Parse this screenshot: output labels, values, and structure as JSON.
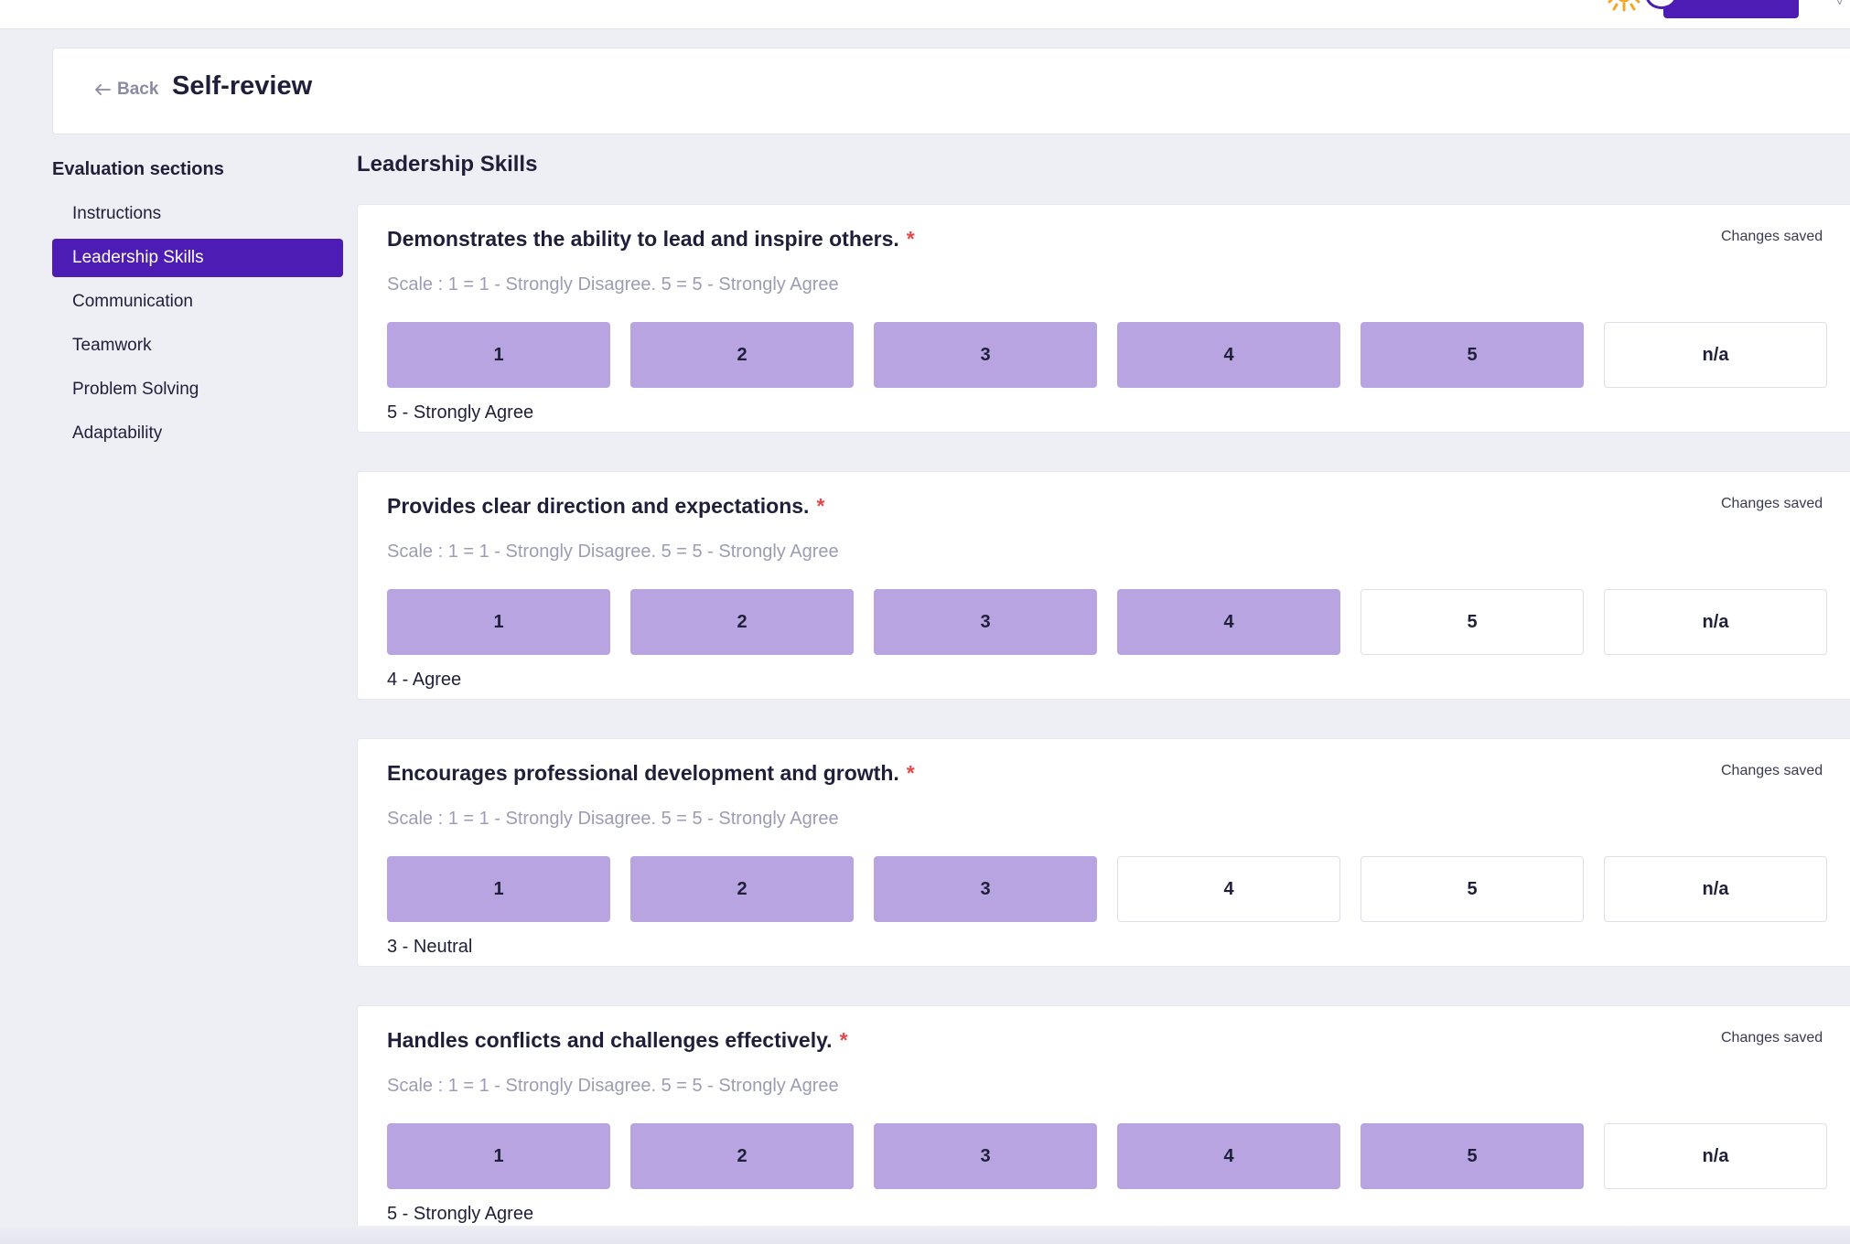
{
  "header": {
    "back_label": "Back",
    "page_title": "Self-review"
  },
  "sidebar": {
    "heading": "Evaluation sections",
    "items": [
      {
        "label": "Instructions",
        "active": false
      },
      {
        "label": "Leadership Skills",
        "active": true
      },
      {
        "label": "Communication",
        "active": false
      },
      {
        "label": "Teamwork",
        "active": false
      },
      {
        "label": "Problem Solving",
        "active": false
      },
      {
        "label": "Adaptability",
        "active": false
      }
    ]
  },
  "main": {
    "section_title": "Leadership Skills",
    "rating_options": [
      "1",
      "2",
      "3",
      "4",
      "5",
      "n/a"
    ],
    "questions": [
      {
        "title": "Demonstrates the ability to lead and inspire others.",
        "required_mark": "*",
        "status": "Changes saved",
        "scale": "Scale : 1 = 1 - Strongly Disagree. 5 = 5 - Strongly Agree",
        "selected_value": 5,
        "selected_label": "5 - Strongly Agree"
      },
      {
        "title": "Provides clear direction and expectations.",
        "required_mark": "*",
        "status": "Changes saved",
        "scale": "Scale : 1 = 1 - Strongly Disagree. 5 = 5 - Strongly Agree",
        "selected_value": 4,
        "selected_label": "4 - Agree"
      },
      {
        "title": "Encourages professional development and growth.",
        "required_mark": "*",
        "status": "Changes saved",
        "scale": "Scale : 1 = 1 - Strongly Disagree. 5 = 5 - Strongly Agree",
        "selected_value": 3,
        "selected_label": "3 - Neutral"
      },
      {
        "title": "Handles conflicts and challenges effectively.",
        "required_mark": "*",
        "status": "Changes saved",
        "scale": "Scale : 1 = 1 - Strongly Disagree. 5 = 5 - Strongly Agree",
        "selected_value": 5,
        "selected_label": "5 - Strongly Agree"
      }
    ]
  },
  "colors": {
    "accent": "#4c1cb4",
    "rating_fill": "#b7a4e0",
    "required": "#e5484d",
    "background": "#eeeef5"
  }
}
